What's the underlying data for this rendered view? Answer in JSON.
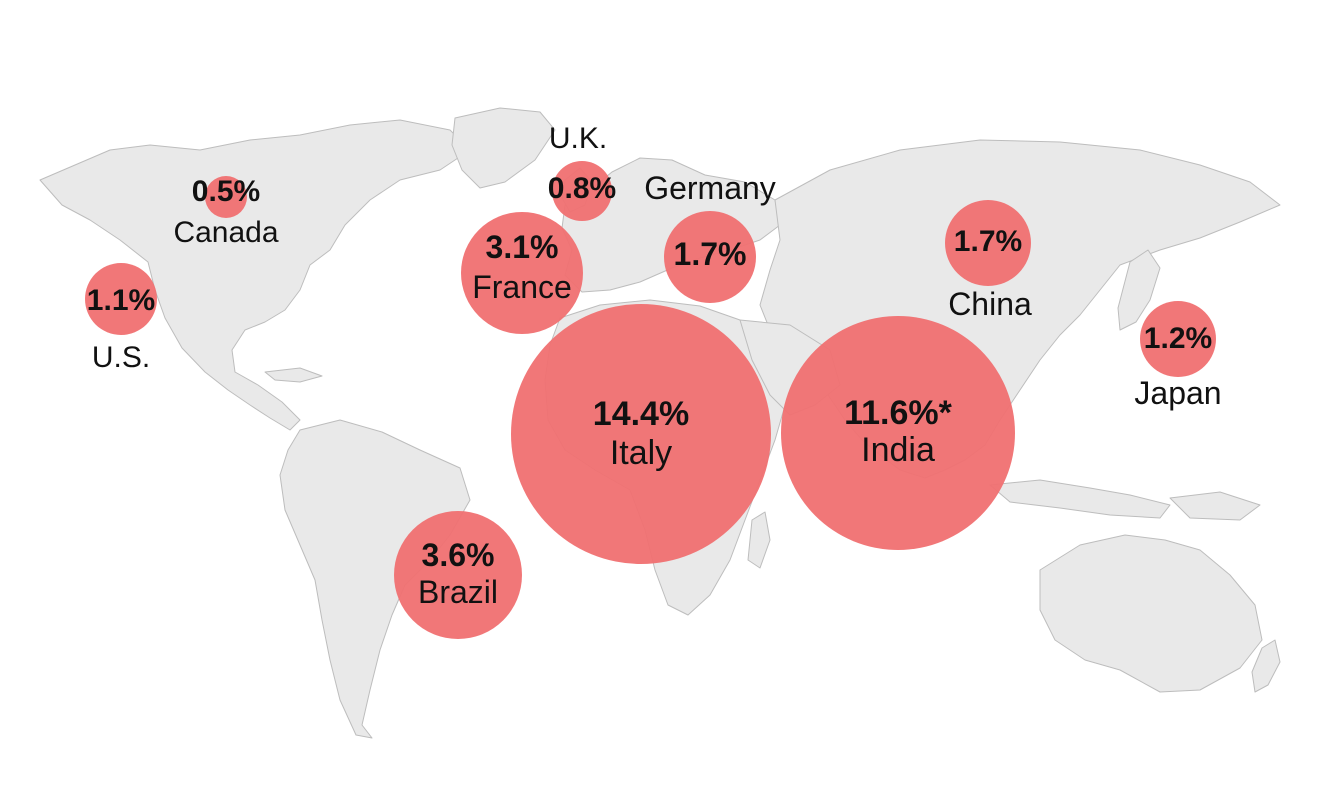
{
  "chart_data": {
    "type": "bubble-map",
    "colors": {
      "bubble": "#f07071",
      "land": "#e9e9e9",
      "border": "#bdbdbd",
      "text": "#111111"
    },
    "bubbles": [
      {
        "id": "italy",
        "country": "Italy",
        "value": 14.4,
        "value_label": "14.4%"
      },
      {
        "id": "india",
        "country": "India",
        "value": 11.6,
        "value_label": "11.6%*"
      },
      {
        "id": "brazil",
        "country": "Brazil",
        "value": 3.6,
        "value_label": "3.6%"
      },
      {
        "id": "france",
        "country": "France",
        "value": 3.1,
        "value_label": "3.1%"
      },
      {
        "id": "germany",
        "country": "Germany",
        "value": 1.7,
        "value_label": "1.7%"
      },
      {
        "id": "china",
        "country": "China",
        "value": 1.7,
        "value_label": "1.7%"
      },
      {
        "id": "japan",
        "country": "Japan",
        "value": 1.2,
        "value_label": "1.2%"
      },
      {
        "id": "us",
        "country": "U.S.",
        "value": 1.1,
        "value_label": "1.1%"
      },
      {
        "id": "uk",
        "country": "U.K.",
        "value": 0.8,
        "value_label": "0.8%"
      },
      {
        "id": "canada",
        "country": "Canada",
        "value": 0.5,
        "value_label": "0.5%"
      }
    ]
  }
}
